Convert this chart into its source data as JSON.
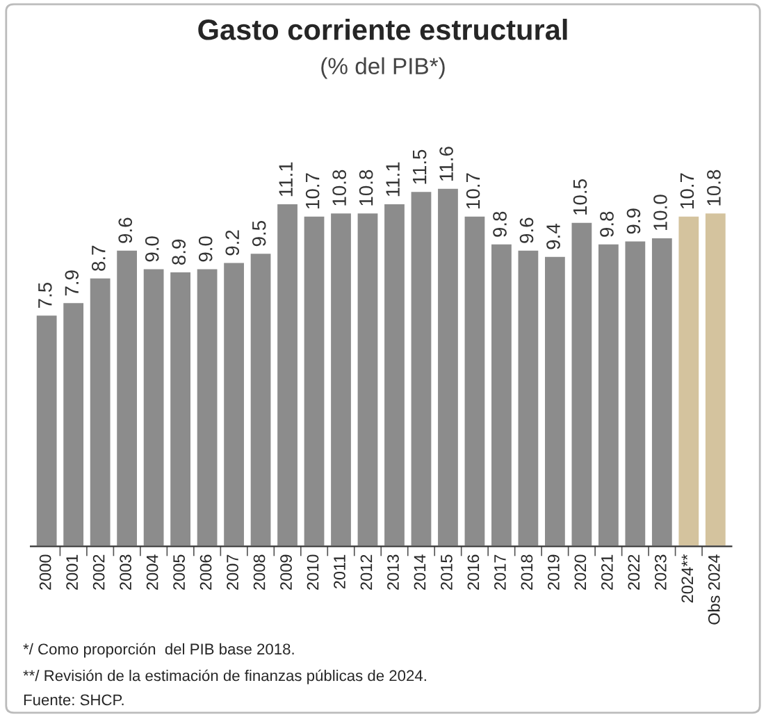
{
  "chart_data": {
    "type": "bar",
    "title": "Gasto corriente estructural",
    "subtitle": "(% del PIB*)",
    "categories": [
      "2000",
      "2001",
      "2002",
      "2003",
      "2004",
      "2005",
      "2006",
      "2007",
      "2008",
      "2009",
      "2010",
      "2011",
      "2012",
      "2013",
      "2014",
      "2015",
      "2016",
      "2017",
      "2018",
      "2019",
      "2020",
      "2021",
      "2022",
      "2023",
      "2024**",
      "Obs 2024"
    ],
    "values": [
      7.5,
      7.9,
      8.7,
      9.6,
      9.0,
      8.9,
      9.0,
      9.2,
      9.5,
      11.1,
      10.7,
      10.8,
      10.8,
      11.1,
      11.5,
      11.6,
      10.7,
      9.8,
      9.6,
      9.4,
      10.5,
      9.8,
      9.9,
      10.0,
      10.7,
      10.8
    ],
    "value_labels": [
      "7.5",
      "7.9",
      "8.7",
      "9.6",
      "9.0",
      "8.9",
      "9.0",
      "9.2",
      "9.5",
      "11.1",
      "10.7",
      "10.8",
      "10.8",
      "11.1",
      "11.5",
      "11.6",
      "10.7",
      "9.8",
      "9.6",
      "9.4",
      "10.5",
      "9.8",
      "9.9",
      "10.0",
      "10.7",
      "10.8"
    ],
    "colors": [
      "#8c8c8c",
      "#8c8c8c",
      "#8c8c8c",
      "#8c8c8c",
      "#8c8c8c",
      "#8c8c8c",
      "#8c8c8c",
      "#8c8c8c",
      "#8c8c8c",
      "#8c8c8c",
      "#8c8c8c",
      "#8c8c8c",
      "#8c8c8c",
      "#8c8c8c",
      "#8c8c8c",
      "#8c8c8c",
      "#8c8c8c",
      "#8c8c8c",
      "#8c8c8c",
      "#8c8c8c",
      "#8c8c8c",
      "#8c8c8c",
      "#8c8c8c",
      "#8c8c8c",
      "#d4c39e",
      "#d4c39e"
    ],
    "annotations": [
      "*/ Como proporción  del PIB base 2018.",
      "**/ Revisión de la estimación de finanzas públicas de 2024.",
      "Fuente: SHCP."
    ],
    "grid": false,
    "legend": false
  }
}
